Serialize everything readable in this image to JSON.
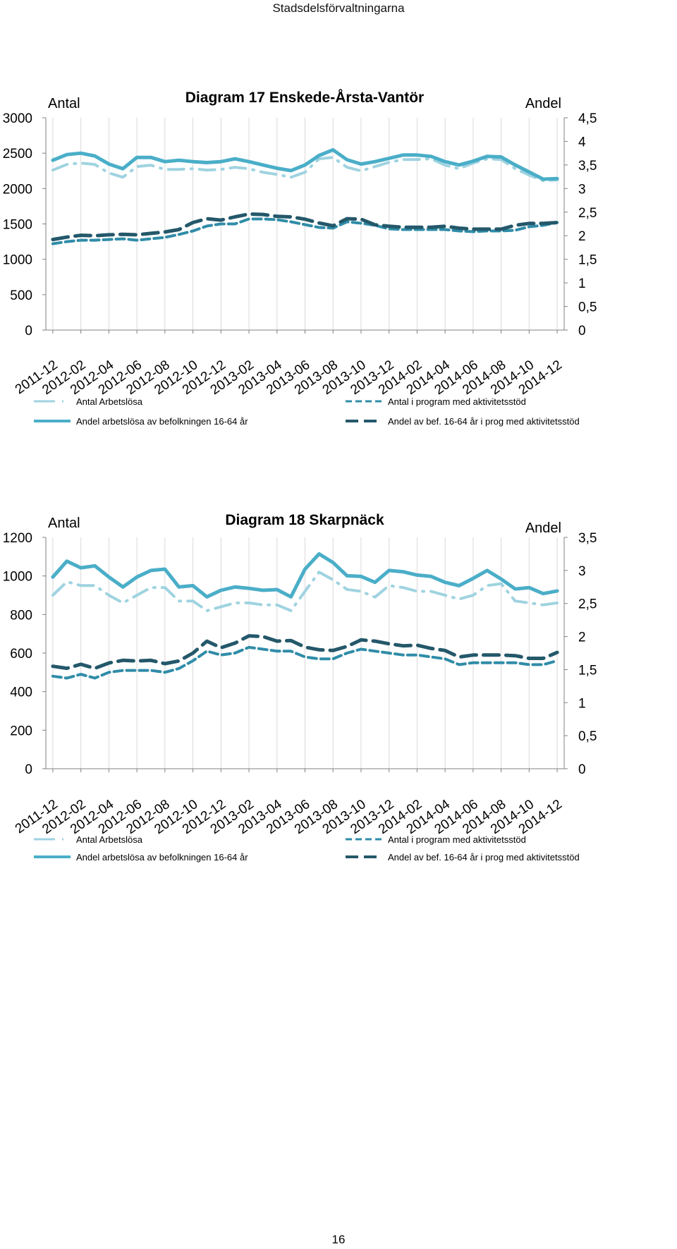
{
  "header": {
    "title": "Stadsdelsförvaltningarna"
  },
  "page_number": "16",
  "colors": {
    "arbetslosa_antal": "#9fd3e0",
    "arbetslosa_andel": "#4aaec8",
    "program_antal": "#2f8ca8",
    "program_andel": "#24586a",
    "gridline": "#d9d9d9",
    "axis": "#808080"
  },
  "categories": [
    "2011-12",
    "2012-01",
    "2012-02",
    "2012-03",
    "2012-04",
    "2012-05",
    "2012-06",
    "2012-07",
    "2012-08",
    "2012-09",
    "2012-10",
    "2012-11",
    "2012-12",
    "2013-01",
    "2013-02",
    "2013-03",
    "2013-04",
    "2013-05",
    "2013-06",
    "2013-07",
    "2013-08",
    "2013-09",
    "2013-10",
    "2013-11",
    "2013-12",
    "2014-01",
    "2014-02",
    "2014-03",
    "2014-04",
    "2014-05",
    "2014-06",
    "2014-07",
    "2014-08",
    "2014-09",
    "2014-10",
    "2014-11",
    "2014-12"
  ],
  "tick_labels": [
    "2011-12",
    "2012-02",
    "2012-04",
    "2012-06",
    "2012-08",
    "2012-10",
    "2012-12",
    "2013-02",
    "2013-04",
    "2013-06",
    "2013-08",
    "2013-10",
    "2013-12",
    "2014-02",
    "2014-04",
    "2014-06",
    "2014-08",
    "2014-10",
    "2014-12"
  ],
  "chart_data": [
    {
      "type": "line",
      "title": "Diagram 17 Enskede-Årsta-Vantör",
      "ylabel_left": "Antal",
      "ylabel_right": "Andel",
      "ylim_left": [
        0,
        3000
      ],
      "ylim_right": [
        0,
        4.5
      ],
      "yticks_left": [
        "0",
        "500",
        "1000",
        "1500",
        "2000",
        "2500",
        "3000"
      ],
      "yticks_right": [
        "0",
        "0,5",
        "1",
        "1,5",
        "2",
        "2,5",
        "3",
        "3,5",
        "4",
        "4,5"
      ],
      "series": [
        {
          "name": "Antal Arbetslösa",
          "axis": "left",
          "style": "dashdot",
          "values": [
            2260,
            2340,
            2360,
            2340,
            2220,
            2160,
            2310,
            2330,
            2270,
            2270,
            2280,
            2260,
            2270,
            2300,
            2280,
            2230,
            2200,
            2160,
            2230,
            2420,
            2440,
            2300,
            2250,
            2310,
            2370,
            2410,
            2410,
            2420,
            2330,
            2280,
            2360,
            2420,
            2410,
            2280,
            2190,
            2110,
            2120
          ]
        },
        {
          "name": "Antal i program med aktivitetsstöd",
          "axis": "left",
          "style": "dashed",
          "values": [
            1220,
            1250,
            1270,
            1270,
            1280,
            1290,
            1270,
            1290,
            1310,
            1350,
            1400,
            1470,
            1500,
            1500,
            1570,
            1570,
            1560,
            1530,
            1490,
            1450,
            1440,
            1530,
            1510,
            1480,
            1430,
            1420,
            1420,
            1420,
            1420,
            1400,
            1390,
            1400,
            1400,
            1410,
            1460,
            1480,
            1520
          ]
        },
        {
          "name": "Andel arbetslösa av befolkningen 16-64 år",
          "axis": "right",
          "style": "solid",
          "values": [
            3.6,
            3.72,
            3.75,
            3.69,
            3.52,
            3.42,
            3.66,
            3.66,
            3.57,
            3.6,
            3.57,
            3.55,
            3.57,
            3.63,
            3.57,
            3.5,
            3.43,
            3.38,
            3.5,
            3.7,
            3.82,
            3.61,
            3.52,
            3.57,
            3.64,
            3.71,
            3.71,
            3.68,
            3.57,
            3.5,
            3.58,
            3.68,
            3.67,
            3.5,
            3.35,
            3.2,
            3.21
          ]
        },
        {
          "name": "Andel av bef. 16-64 år i prog med aktivitetsstöd",
          "axis": "right",
          "style": "longdash",
          "values": [
            1.92,
            1.97,
            2.01,
            2.0,
            2.02,
            2.03,
            2.02,
            2.05,
            2.08,
            2.13,
            2.28,
            2.36,
            2.33,
            2.4,
            2.46,
            2.45,
            2.41,
            2.4,
            2.35,
            2.27,
            2.21,
            2.36,
            2.35,
            2.23,
            2.2,
            2.18,
            2.18,
            2.18,
            2.2,
            2.16,
            2.14,
            2.14,
            2.14,
            2.22,
            2.26,
            2.26,
            2.28
          ]
        }
      ]
    },
    {
      "type": "line",
      "title": "Diagram 18 Skarpnäck",
      "ylabel_left": "Antal",
      "ylabel_right": "Andel",
      "ylim_left": [
        0,
        1200
      ],
      "ylim_right": [
        0,
        3.5
      ],
      "yticks_left": [
        "0",
        "200",
        "400",
        "600",
        "800",
        "1000",
        "1200"
      ],
      "yticks_right": [
        "0",
        "0,5",
        "1",
        "1,5",
        "2",
        "2,5",
        "3",
        "3,5"
      ],
      "series": [
        {
          "name": "Antal Arbetslösa",
          "axis": "left",
          "style": "dashdot",
          "values": [
            900,
            970,
            950,
            950,
            900,
            860,
            900,
            940,
            940,
            870,
            870,
            820,
            840,
            860,
            860,
            850,
            850,
            820,
            920,
            1020,
            980,
            930,
            920,
            890,
            950,
            940,
            920,
            920,
            900,
            880,
            900,
            950,
            960,
            870,
            860,
            850,
            860
          ]
        },
        {
          "name": "Antal i program med aktivitetsstöd",
          "axis": "left",
          "style": "dashed",
          "values": [
            480,
            470,
            490,
            470,
            500,
            510,
            510,
            510,
            500,
            520,
            560,
            610,
            590,
            600,
            630,
            620,
            610,
            610,
            580,
            570,
            570,
            600,
            620,
            610,
            600,
            590,
            590,
            580,
            570,
            540,
            550,
            550,
            550,
            550,
            540,
            540,
            560
          ]
        },
        {
          "name": "Andel arbetslösa av befolkningen 16-64 år",
          "axis": "right",
          "style": "solid",
          "values": [
            2.9,
            3.14,
            3.04,
            3.07,
            2.9,
            2.75,
            2.9,
            3.0,
            3.02,
            2.75,
            2.77,
            2.6,
            2.7,
            2.75,
            2.73,
            2.7,
            2.71,
            2.6,
            3.02,
            3.25,
            3.12,
            2.92,
            2.91,
            2.82,
            3.0,
            2.98,
            2.93,
            2.91,
            2.82,
            2.77,
            2.88,
            3.0,
            2.87,
            2.72,
            2.74,
            2.65,
            2.69
          ]
        },
        {
          "name": "Andel av bef. 16-64 år i prog med aktivitetsstöd",
          "axis": "right",
          "style": "longdash",
          "values": [
            1.55,
            1.52,
            1.58,
            1.52,
            1.6,
            1.64,
            1.63,
            1.64,
            1.59,
            1.63,
            1.75,
            1.93,
            1.83,
            1.9,
            2.01,
            2.0,
            1.93,
            1.94,
            1.84,
            1.8,
            1.79,
            1.85,
            1.95,
            1.93,
            1.89,
            1.86,
            1.87,
            1.82,
            1.79,
            1.69,
            1.72,
            1.72,
            1.72,
            1.71,
            1.67,
            1.67,
            1.76
          ]
        }
      ]
    }
  ]
}
